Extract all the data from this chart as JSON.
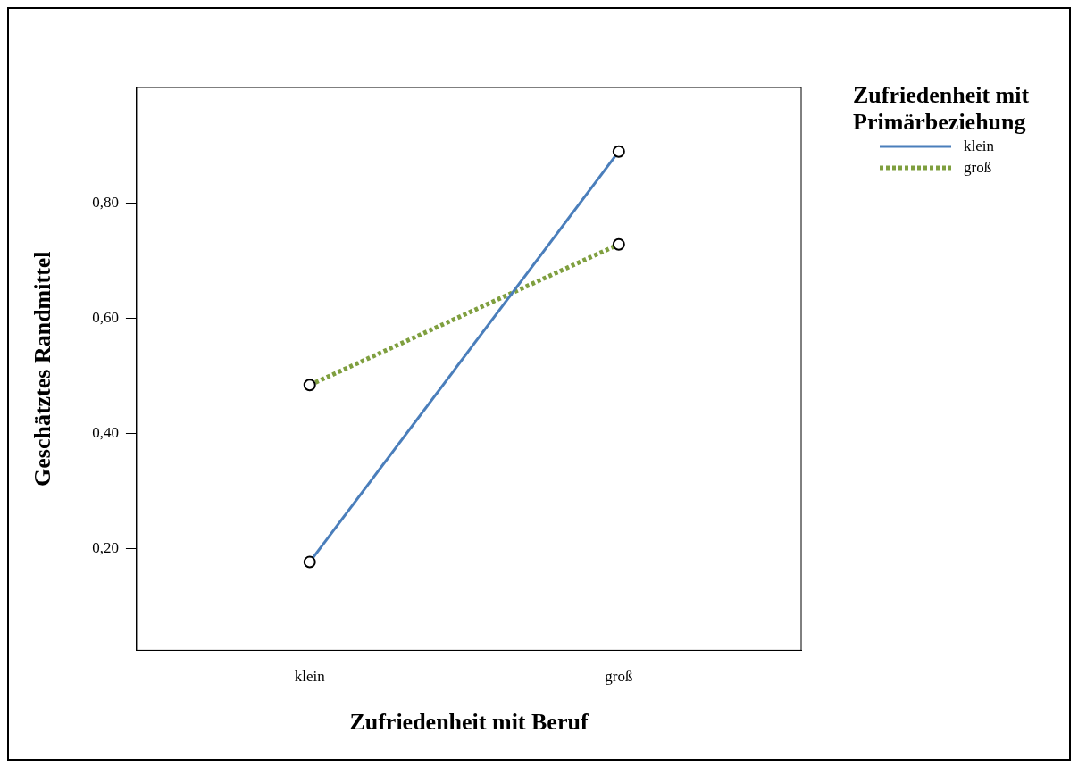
{
  "chart_data": {
    "type": "line",
    "xlabel": "Zufriedenheit mit Beruf",
    "ylabel": "Geschätztes Randmittel",
    "legend_title": "Zufriedenheit mit Primärbeziehung",
    "categories": [
      "klein",
      "groß"
    ],
    "series": [
      {
        "name": "klein",
        "color": "#4a7ebb",
        "values": [
          0.177,
          0.889
        ],
        "line_style": "solid"
      },
      {
        "name": "groß",
        "color": "#7f9f3f",
        "values": [
          0.484,
          0.728
        ],
        "line_style": "dotted"
      }
    ],
    "ylim": [
      0.024,
      1.0
    ],
    "yticks": [
      {
        "value": 0.2,
        "label": "0,20"
      },
      {
        "value": 0.4,
        "label": "0,40"
      },
      {
        "value": 0.6,
        "label": "0,60"
      },
      {
        "value": 0.8,
        "label": "0,80"
      }
    ],
    "grid": false,
    "legend": "top right",
    "marker": "circle"
  }
}
